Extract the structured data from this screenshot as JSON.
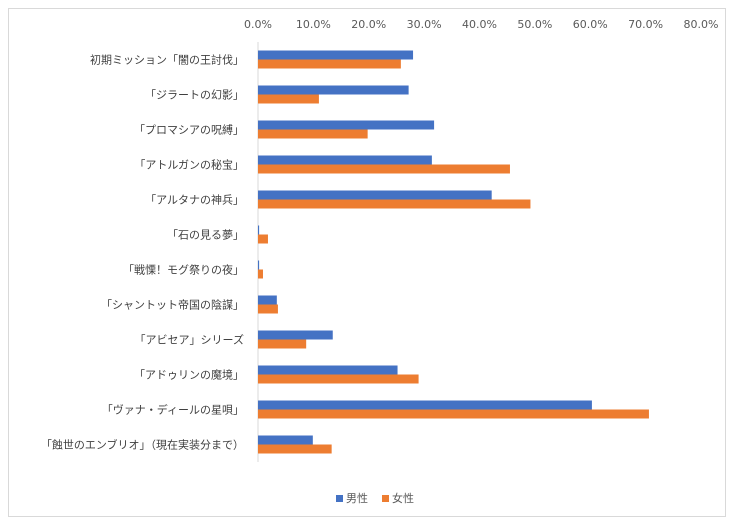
{
  "chart_data": {
    "type": "bar",
    "orientation": "horizontal",
    "categories": [
      "初期ミッション「闇の王討伐」",
      "「ジラートの幻影」",
      "「プロマシアの呪縛」",
      "「アトルガンの秘宝」",
      "「アルタナの神兵」",
      "「石の見る夢」",
      "「戦慄！モグ祭りの夜」",
      "「シャントット帝国の陰謀」",
      "「アビセア」シリーズ",
      "「アドゥリンの魔境」",
      "「ヴァナ・ディールの星唄」",
      "「蝕世のエンブリオ」（現在実装分まで）"
    ],
    "series": [
      {
        "name": "男性",
        "color": "#4472c4",
        "values": [
          0.28,
          0.272,
          0.318,
          0.314,
          0.422,
          0.002,
          0.002,
          0.034,
          0.135,
          0.252,
          0.603,
          0.099
        ]
      },
      {
        "name": "女性",
        "color": "#ed7d31",
        "values": [
          0.258,
          0.11,
          0.198,
          0.455,
          0.492,
          0.018,
          0.009,
          0.036,
          0.087,
          0.29,
          0.706,
          0.133
        ]
      }
    ],
    "xlim": [
      0,
      0.8
    ],
    "xticks": [
      0,
      0.1,
      0.2,
      0.3,
      0.4,
      0.5,
      0.6,
      0.7,
      0.8
    ],
    "xtick_labels": [
      "0.0%",
      "10.0%",
      "20.0%",
      "30.0%",
      "40.0%",
      "50.0%",
      "60.0%",
      "70.0%",
      "80.0%"
    ],
    "x_axis_position": "top",
    "grid": false,
    "legend_position": "bottom",
    "title": "",
    "xlabel": "",
    "ylabel": ""
  }
}
